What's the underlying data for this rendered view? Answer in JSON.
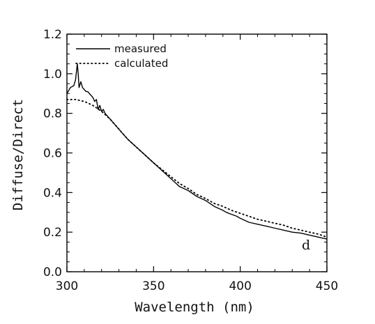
{
  "chart_data": {
    "type": "line",
    "title": "",
    "xlabel": "Wavelength (nm)",
    "ylabel": "Diffuse/Direct",
    "xlim": [
      300,
      450
    ],
    "ylim": [
      0.0,
      1.2
    ],
    "xticks": [
      300,
      350,
      400,
      450
    ],
    "xtick_labels": [
      "300",
      "350",
      "400",
      "450"
    ],
    "yticks": [
      0.0,
      0.2,
      0.4,
      0.6,
      0.8,
      1.0,
      1.2
    ],
    "ytick_labels": [
      "0.0",
      "0.2",
      "0.4",
      "0.6",
      "0.8",
      "1.0",
      "1.2"
    ],
    "grid": false,
    "legend_position": "top-left",
    "panel_label": "d",
    "series": [
      {
        "name": "measured",
        "style": "solid",
        "color": "#000000",
        "x": [
          300,
          302,
          304,
          305,
          306,
          306.5,
          307,
          308,
          309,
          310,
          311,
          312,
          313,
          315,
          316,
          317,
          318,
          319,
          320,
          321,
          322,
          325,
          330,
          335,
          340,
          345,
          350,
          355,
          360,
          365,
          370,
          375,
          380,
          385,
          390,
          392,
          395,
          398,
          400,
          405,
          410,
          415,
          420,
          425,
          430,
          435,
          440,
          445,
          450
        ],
        "y": [
          0.9,
          0.93,
          0.94,
          0.97,
          1.05,
          1.0,
          0.93,
          0.96,
          0.93,
          0.92,
          0.91,
          0.91,
          0.9,
          0.88,
          0.86,
          0.87,
          0.82,
          0.84,
          0.81,
          0.82,
          0.8,
          0.77,
          0.72,
          0.67,
          0.63,
          0.59,
          0.55,
          0.51,
          0.47,
          0.43,
          0.41,
          0.38,
          0.36,
          0.33,
          0.31,
          0.3,
          0.29,
          0.28,
          0.27,
          0.25,
          0.24,
          0.23,
          0.22,
          0.21,
          0.2,
          0.195,
          0.185,
          0.175,
          0.165
        ]
      },
      {
        "name": "calculated",
        "style": "dotted",
        "color": "#000000",
        "x": [
          300,
          305,
          310,
          315,
          320,
          325,
          330,
          335,
          340,
          345,
          350,
          355,
          360,
          365,
          370,
          375,
          380,
          385,
          390,
          395,
          400,
          405,
          410,
          415,
          420,
          425,
          430,
          435,
          440,
          445,
          450
        ],
        "y": [
          0.87,
          0.87,
          0.86,
          0.84,
          0.81,
          0.77,
          0.72,
          0.67,
          0.63,
          0.59,
          0.55,
          0.515,
          0.48,
          0.445,
          0.42,
          0.39,
          0.37,
          0.345,
          0.33,
          0.31,
          0.295,
          0.28,
          0.265,
          0.255,
          0.245,
          0.235,
          0.22,
          0.21,
          0.2,
          0.19,
          0.175
        ]
      }
    ]
  }
}
